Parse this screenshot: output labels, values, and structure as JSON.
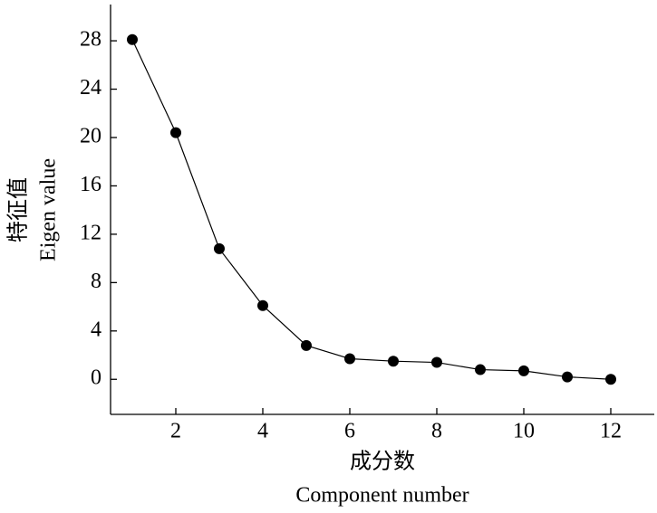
{
  "chart_data": {
    "type": "line",
    "x": [
      1,
      2,
      3,
      4,
      5,
      6,
      7,
      8,
      9,
      10,
      11,
      12
    ],
    "values": [
      28.1,
      20.4,
      10.8,
      6.1,
      2.8,
      1.7,
      1.5,
      1.4,
      0.8,
      0.7,
      0.2,
      0
    ],
    "color": "#000000",
    "xlim": [
      0.5,
      13
    ],
    "xticks": [
      2,
      4,
      6,
      8,
      10,
      12
    ],
    "ylim": [
      -2.9,
      31
    ],
    "yticks": [
      0,
      4,
      8,
      12,
      16,
      20,
      24,
      28
    ],
    "xlabel": "成分数",
    "xlabel_en": "Component number",
    "ylabel": "特征值",
    "ylabel_en": "Eigen value",
    "grid": false
  }
}
